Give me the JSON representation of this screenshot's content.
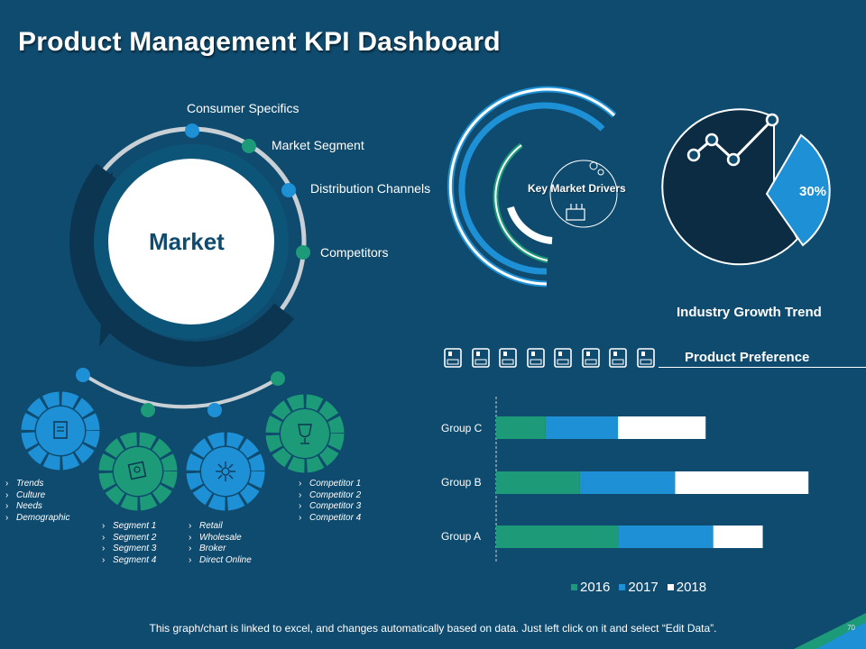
{
  "title": "Product Management KPI Dashboard",
  "colors": {
    "background": "#0f4b6e",
    "blue": "#1e90d6",
    "green": "#1d9a78",
    "dark": "#0b3550",
    "white": "#ffffff"
  },
  "market": {
    "center_label": "Market",
    "labels": [
      "Consumer Specifics",
      "Market Segment",
      "Distribution Channels",
      "Competitors"
    ],
    "bullet_groups": [
      {
        "items": [
          "Trends",
          "Culture",
          "Needs",
          "Demographic"
        ]
      },
      {
        "items": [
          "Segment 1",
          "Segment 2",
          "Segment 3",
          "Segment 4"
        ]
      },
      {
        "items": [
          "Retail",
          "Wholesale",
          "Broker",
          "Direct Online"
        ]
      },
      {
        "items": [
          "Competitor 1",
          "Competitor 2",
          "Competitor 3",
          "Competitor 4"
        ]
      }
    ],
    "icons": [
      "document-icon",
      "id-card-icon",
      "network-icon",
      "trophy-icon"
    ]
  },
  "drivers": {
    "label": "Key Market Drivers"
  },
  "growth": {
    "title": "Industry Growth Trend",
    "percent_label": "30%"
  },
  "preference": {
    "title": "Product Preference",
    "icon_count": 8
  },
  "chart_data": {
    "type": "bar",
    "orientation": "horizontal",
    "stacked": true,
    "categories": [
      "Group A",
      "Group B",
      "Group C"
    ],
    "series": [
      {
        "name": "2016",
        "values": [
          3.2,
          2.2,
          1.3
        ],
        "color": "#1d9a78"
      },
      {
        "name": "2017",
        "values": [
          2.5,
          2.5,
          1.9
        ],
        "color": "#1e90d6"
      },
      {
        "name": "2018",
        "values": [
          1.3,
          3.5,
          2.3
        ],
        "color": "#ffffff"
      }
    ],
    "xlim": [
      0,
      9
    ],
    "legend": "bottom"
  },
  "footer": "This graph/chart is linked to excel, and changes automatically based on data. Just left click on it and select “Edit Data”.",
  "page_number": "70"
}
